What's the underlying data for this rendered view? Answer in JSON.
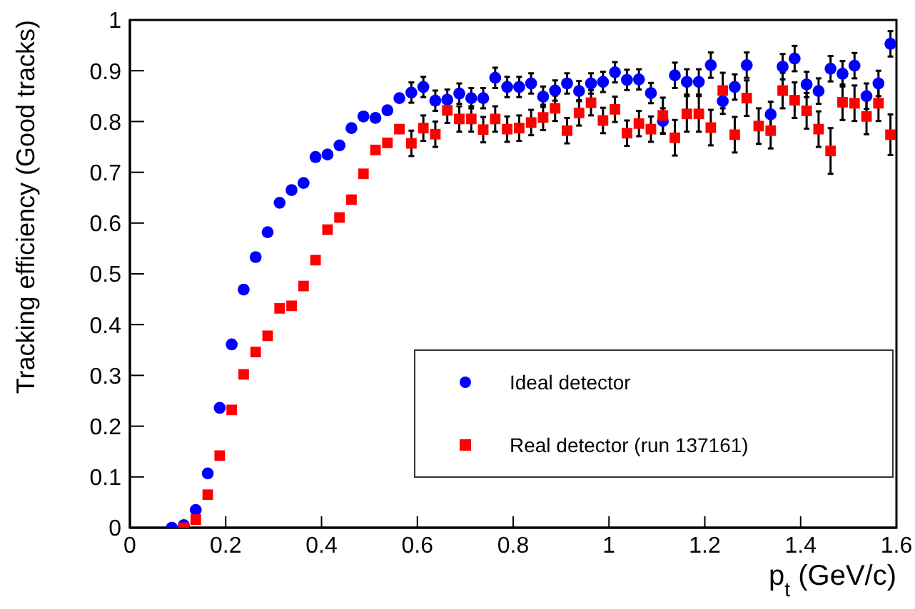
{
  "chart_data": {
    "type": "scatter",
    "xlabel": "p$_{t}$ (GeV/c)",
    "ylabel": "Tracking efficiency (Good tracks)",
    "x": [
      0.0875,
      0.1125,
      0.1375,
      0.1625,
      0.1875,
      0.2125,
      0.2375,
      0.2625,
      0.2875,
      0.3125,
      0.3375,
      0.3625,
      0.3875,
      0.4125,
      0.4375,
      0.4625,
      0.4875,
      0.5125,
      0.5375,
      0.5625,
      0.5875,
      0.6125,
      0.6375,
      0.6625,
      0.6875,
      0.7125,
      0.7375,
      0.7625,
      0.7875,
      0.8125,
      0.8375,
      0.8625,
      0.8875,
      0.9125,
      0.9375,
      0.9625,
      0.9875,
      1.0125,
      1.0375,
      1.0625,
      1.0875,
      1.1125,
      1.1375,
      1.1625,
      1.1875,
      1.2125,
      1.2375,
      1.2625,
      1.2875,
      1.3125,
      1.3375,
      1.3625,
      1.3875,
      1.4125,
      1.4375,
      1.4625,
      1.4875,
      1.5125,
      1.5375,
      1.5625,
      1.5875
    ],
    "series": [
      {
        "name": "Ideal detector",
        "color": "#0000ff",
        "marker": "circle",
        "values": [
          0.0,
          0.005,
          0.035,
          0.107,
          0.236,
          0.361,
          0.469,
          0.533,
          0.582,
          0.64,
          0.665,
          0.679,
          0.73,
          0.735,
          0.753,
          0.787,
          0.81,
          0.807,
          0.822,
          0.846,
          0.857,
          0.868,
          0.841,
          0.843,
          0.855,
          0.846,
          0.846,
          0.886,
          0.868,
          0.868,
          0.875,
          0.849,
          0.861,
          0.875,
          0.86,
          0.875,
          0.878,
          0.897,
          0.882,
          0.883,
          0.856,
          0.801,
          0.891,
          0.878,
          0.878,
          0.911,
          0.84,
          0.868,
          0.911,
          null,
          0.814,
          0.908,
          0.924,
          0.873,
          0.86,
          0.904,
          0.894,
          0.91,
          0.85,
          0.875,
          0.953
        ],
        "errors": [
          null,
          null,
          null,
          null,
          null,
          null,
          null,
          null,
          null,
          null,
          null,
          null,
          null,
          null,
          null,
          null,
          null,
          null,
          null,
          null,
          0.02,
          0.02,
          0.02,
          0.02,
          0.02,
          0.02,
          0.02,
          0.02,
          0.02,
          0.02,
          0.02,
          0.02,
          0.02,
          0.02,
          0.02,
          0.02,
          0.02,
          0.02,
          0.02,
          0.02,
          0.02,
          0.025,
          0.025,
          0.025,
          0.025,
          0.025,
          0.025,
          0.025,
          0.025,
          null,
          0.025,
          0.025,
          0.025,
          0.025,
          0.025,
          0.025,
          0.025,
          0.025,
          0.025,
          0.025,
          0.025
        ]
      },
      {
        "name": "Real detector (run 137161)",
        "color": "#ff0000",
        "marker": "square",
        "values": [
          null,
          0.0,
          0.016,
          0.065,
          0.142,
          0.232,
          0.302,
          0.346,
          0.378,
          0.432,
          0.437,
          0.476,
          0.527,
          0.587,
          0.611,
          0.646,
          0.697,
          0.744,
          0.758,
          0.785,
          0.757,
          0.787,
          0.775,
          0.822,
          0.805,
          0.805,
          0.784,
          0.805,
          0.785,
          0.787,
          0.798,
          0.808,
          0.826,
          0.782,
          0.817,
          0.837,
          0.802,
          0.824,
          0.777,
          0.796,
          0.785,
          0.812,
          0.768,
          0.815,
          0.815,
          0.788,
          0.861,
          0.774,
          0.846,
          0.791,
          0.782,
          0.861,
          0.842,
          0.821,
          0.785,
          0.742,
          0.838,
          0.836,
          0.81,
          0.836,
          0.774
        ],
        "errors": [
          null,
          null,
          null,
          null,
          null,
          null,
          null,
          null,
          null,
          null,
          null,
          null,
          null,
          null,
          null,
          null,
          null,
          null,
          null,
          null,
          0.025,
          0.025,
          0.025,
          0.025,
          0.025,
          0.025,
          0.025,
          0.025,
          0.025,
          0.025,
          0.025,
          0.025,
          0.025,
          0.025,
          0.025,
          0.025,
          0.025,
          0.025,
          0.025,
          0.025,
          0.025,
          0.035,
          0.035,
          0.035,
          0.035,
          0.035,
          0.035,
          0.035,
          0.035,
          0.035,
          0.035,
          0.035,
          0.035,
          0.035,
          0.035,
          0.045,
          0.035,
          0.035,
          0.035,
          0.035,
          0.04
        ]
      }
    ],
    "xlim": [
      0,
      1.6
    ],
    "xticks": [
      0,
      0.2,
      0.4,
      0.6,
      0.8,
      1,
      1.2,
      1.4,
      1.6
    ],
    "ylim": [
      0,
      1
    ],
    "yticks": [
      0,
      0.1,
      0.2,
      0.3,
      0.4,
      0.5,
      0.6,
      0.7,
      0.8,
      0.9,
      1
    ],
    "grid": false,
    "legend": "bottom right"
  }
}
